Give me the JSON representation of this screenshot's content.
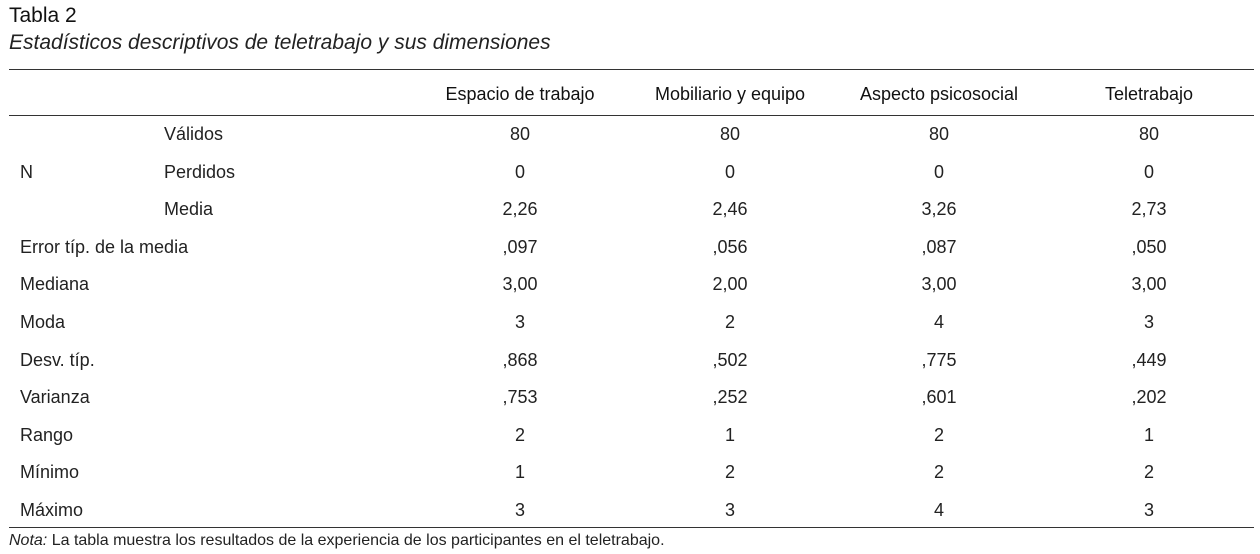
{
  "table": {
    "label": "Tabla 2",
    "title": "Estadísticos descriptivos de teletrabajo y sus dimensiones",
    "columns": [
      "Espacio de trabajo",
      "Mobiliario y equipo",
      "Aspecto psicosocial",
      "Teletrabajo"
    ],
    "rows": [
      {
        "label": "",
        "sublabel": "Válidos",
        "values": [
          "80",
          "80",
          "80",
          "80"
        ]
      },
      {
        "label": "N",
        "sublabel": "Perdidos",
        "values": [
          "0",
          "0",
          "0",
          "0"
        ]
      },
      {
        "label": "",
        "sublabel": "Media",
        "values": [
          "2,26",
          "2,46",
          "3,26",
          "2,73"
        ]
      },
      {
        "label": "Error típ. de la media",
        "sublabel": "",
        "values": [
          ",097",
          ",056",
          ",087",
          ",050"
        ]
      },
      {
        "label": "Mediana",
        "sublabel": "",
        "values": [
          "3,00",
          "2,00",
          "3,00",
          "3,00"
        ]
      },
      {
        "label": "Moda",
        "sublabel": "",
        "values": [
          "3",
          "2",
          "4",
          "3"
        ]
      },
      {
        "label": "Desv. típ.",
        "sublabel": "",
        "values": [
          ",868",
          ",502",
          ",775",
          ",449"
        ]
      },
      {
        "label": "Varianza",
        "sublabel": "",
        "values": [
          ",753",
          ",252",
          ",601",
          ",202"
        ]
      },
      {
        "label": "Rango",
        "sublabel": "",
        "values": [
          "2",
          "1",
          "2",
          "1"
        ]
      },
      {
        "label": "Mínimo",
        "sublabel": "",
        "values": [
          "1",
          "2",
          "2",
          "2"
        ]
      },
      {
        "label": "Máximo",
        "sublabel": "",
        "values": [
          "3",
          "3",
          "4",
          "3"
        ]
      }
    ],
    "note_label": "Nota:",
    "note_text": " La tabla muestra los resultados de la experiencia de los participantes en el teletrabajo."
  }
}
